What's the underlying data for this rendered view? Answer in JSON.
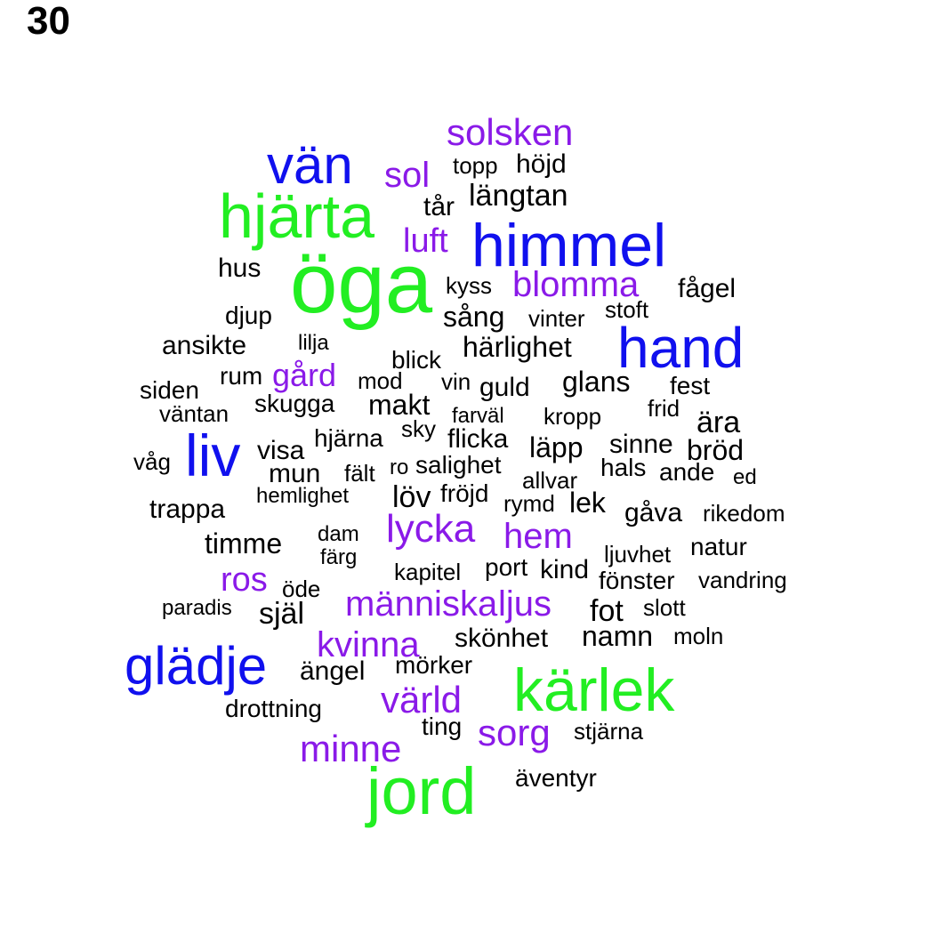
{
  "panel_number": "30",
  "colors": {
    "green": "#22ee22",
    "blue": "#1010ee",
    "purple": "#8a1ae8",
    "black": "#000000"
  },
  "words": [
    {
      "text": "öga",
      "color": "green"
    },
    {
      "text": "hjärta",
      "color": "green"
    },
    {
      "text": "kärlek",
      "color": "green"
    },
    {
      "text": "jord",
      "color": "green"
    },
    {
      "text": "himmel",
      "color": "blue"
    },
    {
      "text": "hand",
      "color": "blue"
    },
    {
      "text": "glädje",
      "color": "blue"
    },
    {
      "text": "vän",
      "color": "blue"
    },
    {
      "text": "liv",
      "color": "blue"
    },
    {
      "text": "solsken",
      "color": "purple"
    },
    {
      "text": "sol",
      "color": "purple"
    },
    {
      "text": "luft",
      "color": "purple"
    },
    {
      "text": "blomma",
      "color": "purple"
    },
    {
      "text": "gård",
      "color": "purple"
    },
    {
      "text": "lycka",
      "color": "purple"
    },
    {
      "text": "hem",
      "color": "purple"
    },
    {
      "text": "ros",
      "color": "purple"
    },
    {
      "text": "människa",
      "color": "purple"
    },
    {
      "text": "ljus",
      "color": "purple"
    },
    {
      "text": "kvinna",
      "color": "purple"
    },
    {
      "text": "värld",
      "color": "purple"
    },
    {
      "text": "sorg",
      "color": "purple"
    },
    {
      "text": "minne",
      "color": "purple"
    },
    {
      "text": "topp",
      "color": "black"
    },
    {
      "text": "höjd",
      "color": "black"
    },
    {
      "text": "längtan",
      "color": "black"
    },
    {
      "text": "tår",
      "color": "black"
    },
    {
      "text": "hus",
      "color": "black"
    },
    {
      "text": "kyss",
      "color": "black"
    },
    {
      "text": "fågel",
      "color": "black"
    },
    {
      "text": "djup",
      "color": "black"
    },
    {
      "text": "sång",
      "color": "black"
    },
    {
      "text": "vinter",
      "color": "black"
    },
    {
      "text": "stoft",
      "color": "black"
    },
    {
      "text": "ansikte",
      "color": "black"
    },
    {
      "text": "lilja",
      "color": "black"
    },
    {
      "text": "härlighet",
      "color": "black"
    },
    {
      "text": "blick",
      "color": "black"
    },
    {
      "text": "rum",
      "color": "black"
    },
    {
      "text": "mod",
      "color": "black"
    },
    {
      "text": "vin",
      "color": "black"
    },
    {
      "text": "guld",
      "color": "black"
    },
    {
      "text": "glans",
      "color": "black"
    },
    {
      "text": "fest",
      "color": "black"
    },
    {
      "text": "siden",
      "color": "black"
    },
    {
      "text": "väntan",
      "color": "black"
    },
    {
      "text": "skugga",
      "color": "black"
    },
    {
      "text": "makt",
      "color": "black"
    },
    {
      "text": "farväl",
      "color": "black"
    },
    {
      "text": "kropp",
      "color": "black"
    },
    {
      "text": "frid",
      "color": "black"
    },
    {
      "text": "ära",
      "color": "black"
    },
    {
      "text": "våg",
      "color": "black"
    },
    {
      "text": "visa",
      "color": "black"
    },
    {
      "text": "hjärna",
      "color": "black"
    },
    {
      "text": "sky",
      "color": "black"
    },
    {
      "text": "flicka",
      "color": "black"
    },
    {
      "text": "läpp",
      "color": "black"
    },
    {
      "text": "sinne",
      "color": "black"
    },
    {
      "text": "bröd",
      "color": "black"
    },
    {
      "text": "mun",
      "color": "black"
    },
    {
      "text": "fält",
      "color": "black"
    },
    {
      "text": "ro",
      "color": "black"
    },
    {
      "text": "salighet",
      "color": "black"
    },
    {
      "text": "hals",
      "color": "black"
    },
    {
      "text": "ande",
      "color": "black"
    },
    {
      "text": "ed",
      "color": "black"
    },
    {
      "text": "allvar",
      "color": "black"
    },
    {
      "text": "trappa",
      "color": "black"
    },
    {
      "text": "hemlighet",
      "color": "black"
    },
    {
      "text": "löv",
      "color": "black"
    },
    {
      "text": "fröjd",
      "color": "black"
    },
    {
      "text": "rymd",
      "color": "black"
    },
    {
      "text": "lek",
      "color": "black"
    },
    {
      "text": "gåva",
      "color": "black"
    },
    {
      "text": "rikedom",
      "color": "black"
    },
    {
      "text": "timme",
      "color": "black"
    },
    {
      "text": "dam",
      "color": "black"
    },
    {
      "text": "färg",
      "color": "black"
    },
    {
      "text": "ljuvhet",
      "color": "black"
    },
    {
      "text": "natur",
      "color": "black"
    },
    {
      "text": "kapitel",
      "color": "black"
    },
    {
      "text": "port",
      "color": "black"
    },
    {
      "text": "kind",
      "color": "black"
    },
    {
      "text": "fönster",
      "color": "black"
    },
    {
      "text": "vandring",
      "color": "black"
    },
    {
      "text": "öde",
      "color": "black"
    },
    {
      "text": "paradis",
      "color": "black"
    },
    {
      "text": "själ",
      "color": "black"
    },
    {
      "text": "fot",
      "color": "black"
    },
    {
      "text": "slott",
      "color": "black"
    },
    {
      "text": "skönhet",
      "color": "black"
    },
    {
      "text": "namn",
      "color": "black"
    },
    {
      "text": "moln",
      "color": "black"
    },
    {
      "text": "ängel",
      "color": "black"
    },
    {
      "text": "mörker",
      "color": "black"
    },
    {
      "text": "drottning",
      "color": "black"
    },
    {
      "text": "ting",
      "color": "black"
    },
    {
      "text": "stjärna",
      "color": "black"
    },
    {
      "text": "äventyr",
      "color": "black"
    }
  ]
}
